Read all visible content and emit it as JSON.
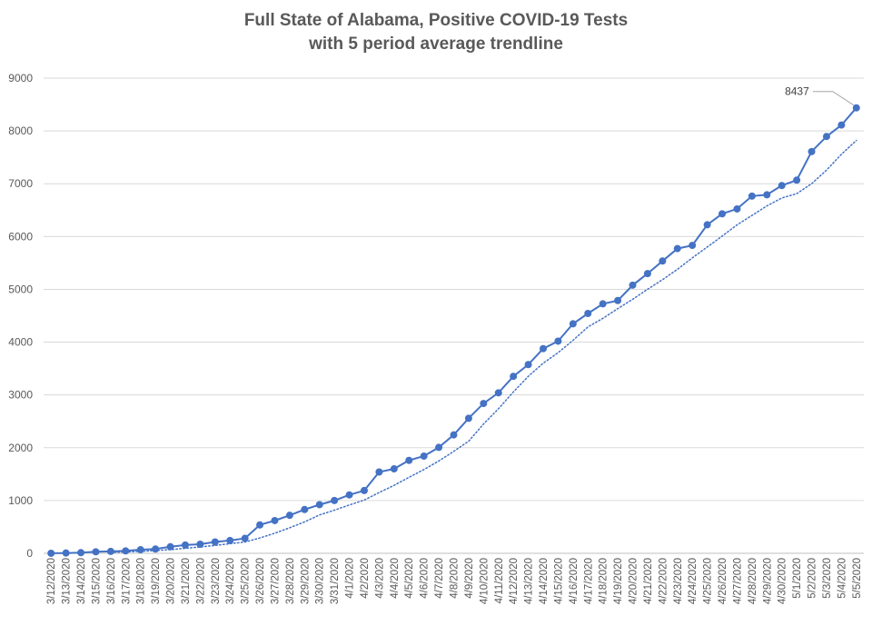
{
  "chart_data": {
    "type": "line",
    "title": "Full State of Alabama, Positive COVID-19 Tests",
    "subtitle": "with 5 period average trendline",
    "xlabel": "",
    "ylabel": "",
    "ylim": [
      0,
      9000
    ],
    "yticks": [
      0,
      1000,
      2000,
      3000,
      4000,
      5000,
      6000,
      7000,
      8000,
      9000
    ],
    "grid": true,
    "legend": "none",
    "categories": [
      "3/12/2020",
      "3/13/2020",
      "3/14/2020",
      "3/15/2020",
      "3/16/2020",
      "3/17/2020",
      "3/18/2020",
      "3/19/2020",
      "3/20/2020",
      "3/21/2020",
      "3/22/2020",
      "3/23/2020",
      "3/24/2020",
      "3/25/2020",
      "3/26/2020",
      "3/27/2020",
      "3/28/2020",
      "3/29/2020",
      "3/30/2020",
      "3/31/2020",
      "4/1/2020",
      "4/2/2020",
      "4/3/2020",
      "4/4/2020",
      "4/5/2020",
      "4/6/2020",
      "4/7/2020",
      "4/8/2020",
      "4/9/2020",
      "4/10/2020",
      "4/11/2020",
      "4/12/2020",
      "4/13/2020",
      "4/14/2020",
      "4/15/2020",
      "4/16/2020",
      "4/17/2020",
      "4/18/2020",
      "4/19/2020",
      "4/20/2020",
      "4/21/2020",
      "4/22/2020",
      "4/23/2020",
      "4/24/2020",
      "4/25/2020",
      "4/26/2020",
      "4/27/2020",
      "4/28/2020",
      "4/29/2020",
      "4/30/2020",
      "5/1/2020",
      "5/2/2020",
      "5/3/2020",
      "5/4/2020",
      "5/5/2020"
    ],
    "series": [
      {
        "style": "solid-markers",
        "color": "#4472c4",
        "values": [
          1,
          6,
          12,
          29,
          36,
          46,
          68,
          81,
          124,
          157,
          172,
          215,
          242,
          283,
          538,
          620,
          720,
          830,
          921,
          1000,
          1106,
          1189,
          1540,
          1600,
          1760,
          1841,
          2006,
          2243,
          2557,
          2838,
          3040,
          3352,
          3575,
          3877,
          4019,
          4347,
          4543,
          4725,
          4788,
          5079,
          5298,
          5536,
          5772,
          5832,
          6222,
          6430,
          6523,
          6766,
          6790,
          6966,
          7068,
          7609,
          7895,
          8112,
          8437
        ]
      },
      {
        "style": "dotted-trendline",
        "color": "#4472c4",
        "values": [
          null,
          null,
          null,
          null,
          17,
          26,
          38,
          52,
          71,
          95,
          120,
          150,
          182,
          214,
          290,
          380,
          484,
          596,
          726,
          818,
          915,
          1009,
          1151,
          1287,
          1439,
          1586,
          1749,
          1930,
          2121,
          2449,
          2737,
          3056,
          3352,
          3600,
          3800,
          4034,
          4289,
          4450,
          4634,
          4811,
          5001,
          5183,
          5379,
          5596,
          5801,
          6007,
          6220,
          6400,
          6580,
          6731,
          6811,
          7000,
          7259,
          7560,
          7820
        ]
      }
    ],
    "annotations": [
      {
        "text": "8437",
        "x": "5/5/2020",
        "y": 8437
      }
    ]
  }
}
